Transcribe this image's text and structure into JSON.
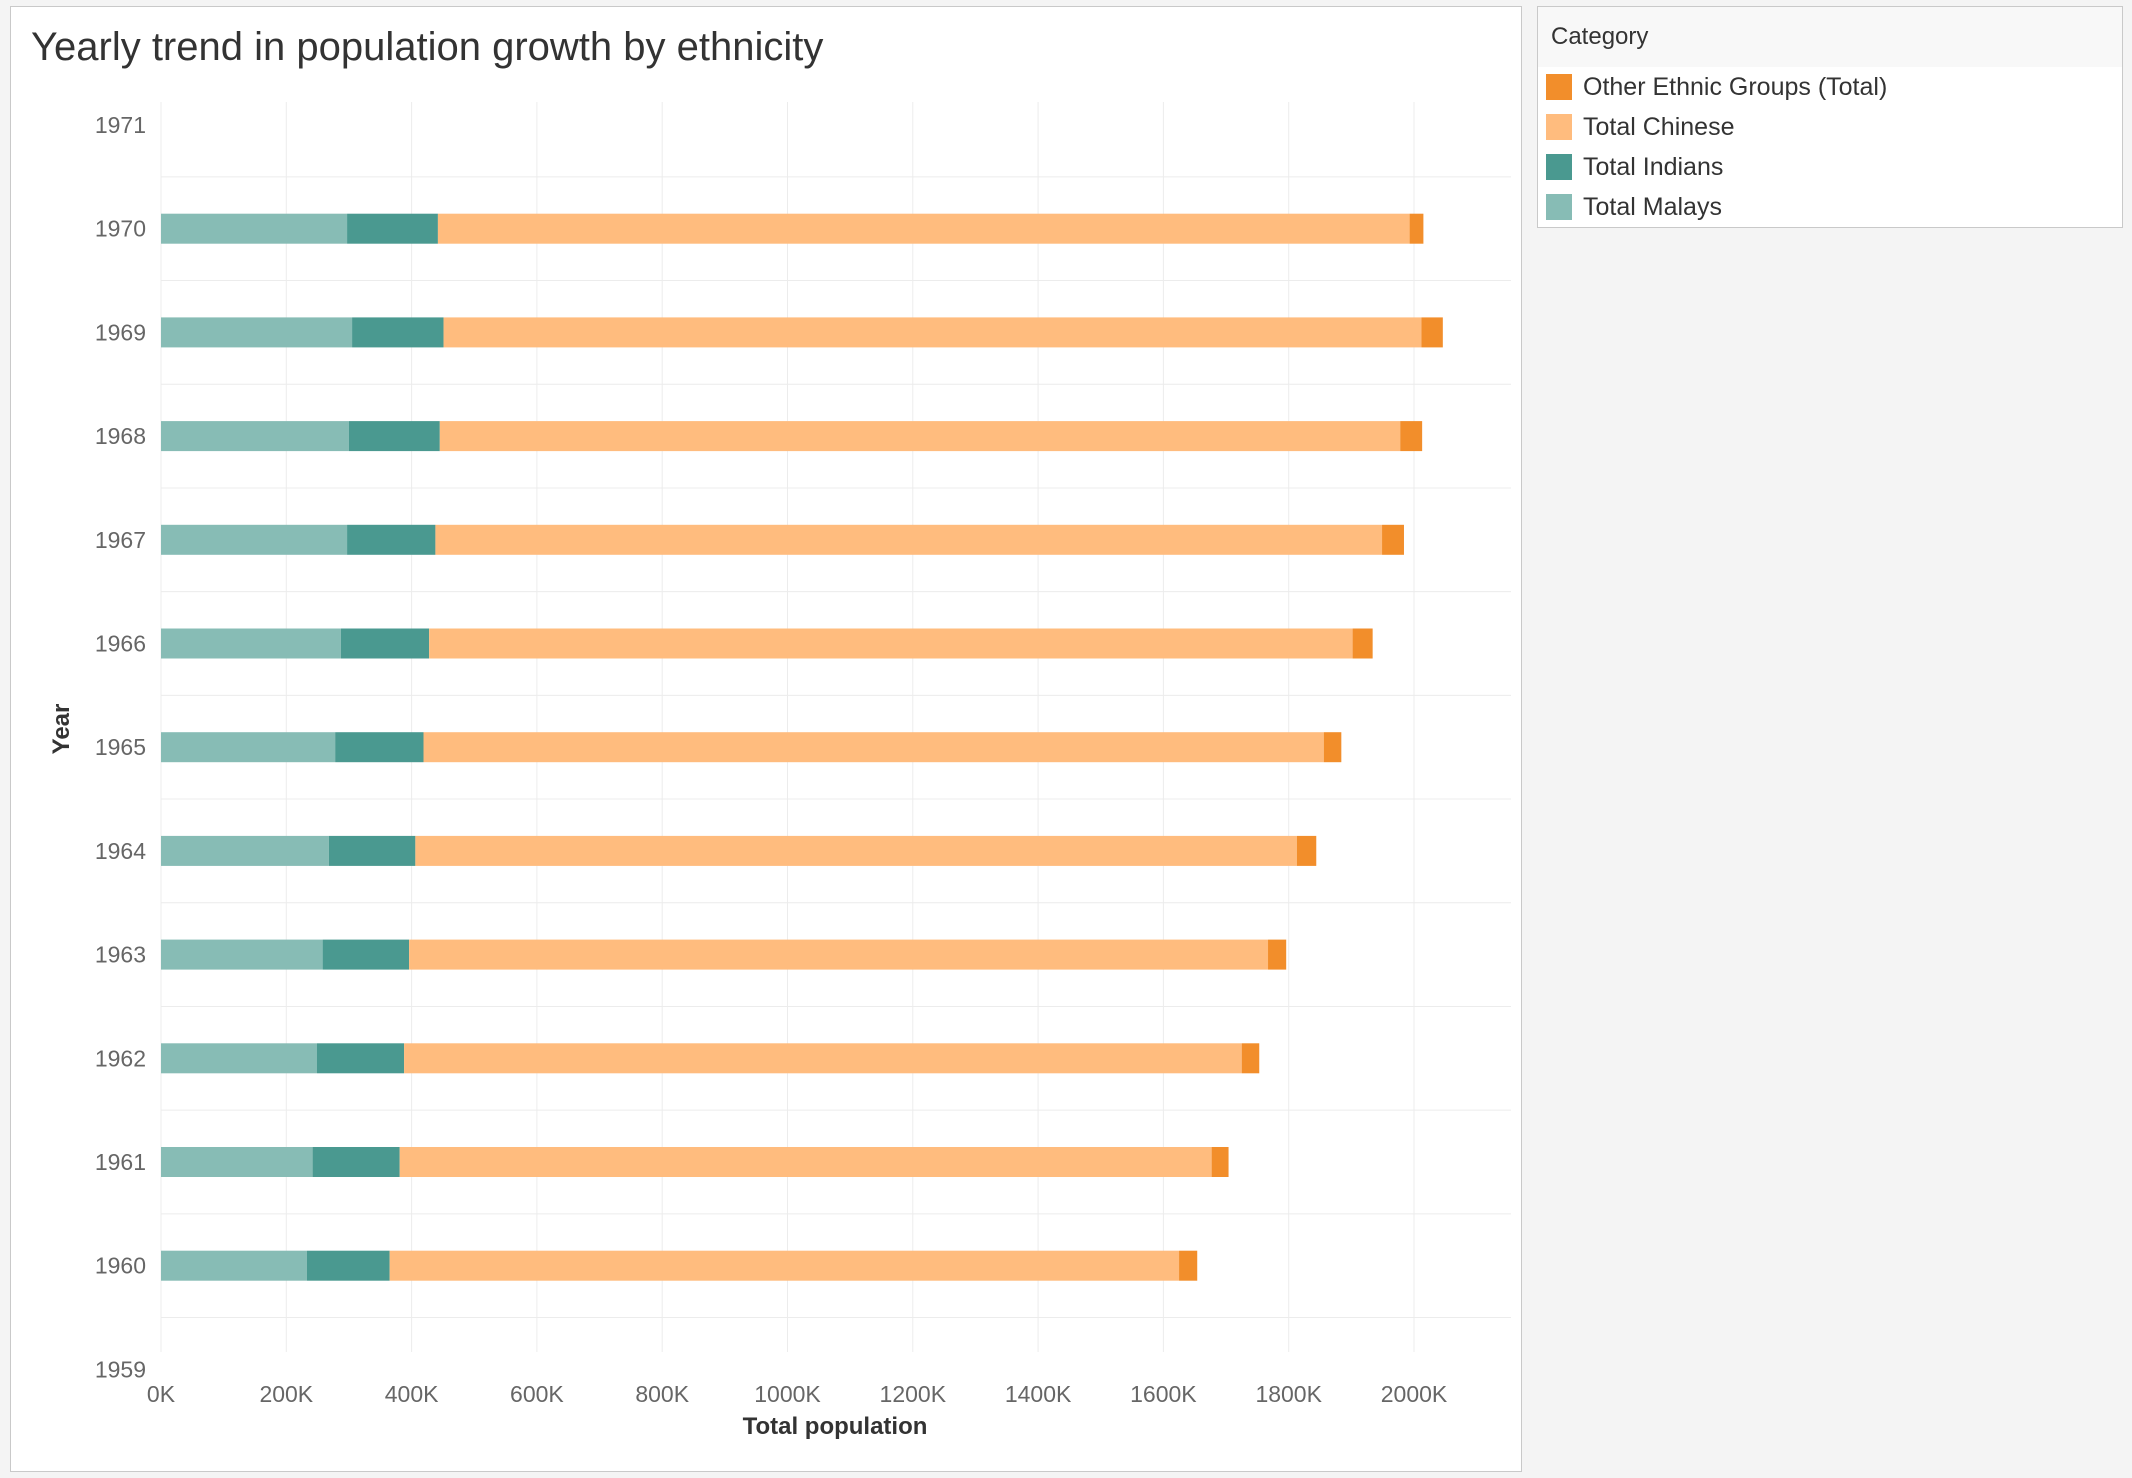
{
  "chart_data": {
    "type": "bar",
    "orientation": "horizontal",
    "stacked": true,
    "title": "Yearly trend in population growth by ethnicity",
    "xlabel": "Total population",
    "ylabel": "Year",
    "y_ticks": [
      "1971",
      "1970",
      "1969",
      "1968",
      "1967",
      "1966",
      "1965",
      "1964",
      "1963",
      "1962",
      "1961",
      "1960",
      "1959"
    ],
    "x_ticks": [
      "0K",
      "200K",
      "400K",
      "600K",
      "800K",
      "1000K",
      "1200K",
      "1400K",
      "1600K",
      "1800K",
      "2000K"
    ],
    "xlim": [
      0,
      2150000
    ],
    "grid": true,
    "legend_title": "Category",
    "legend_position": "right",
    "categories": [
      "1970",
      "1969",
      "1968",
      "1967",
      "1966",
      "1965",
      "1964",
      "1963",
      "1962",
      "1961",
      "1960"
    ],
    "series": [
      {
        "name": "Total Malays",
        "color": "#87bcb5",
        "values": [
          297000,
          305000,
          300000,
          297000,
          287000,
          278000,
          268000,
          258000,
          249000,
          242000,
          233000
        ]
      },
      {
        "name": "Total Indians",
        "color": "#4a9990",
        "values": [
          145000,
          146000,
          145000,
          141000,
          141000,
          141000,
          138000,
          138000,
          139000,
          139000,
          132000
        ]
      },
      {
        "name": "Total Chinese",
        "color": "#ffbc7e",
        "values": [
          1551000,
          1561000,
          1533000,
          1511000,
          1474000,
          1437000,
          1407000,
          1371000,
          1337000,
          1296000,
          1260000
        ]
      },
      {
        "name": "Other Ethnic Groups (Total)",
        "color": "#f28e2b",
        "values": [
          22000,
          34000,
          35000,
          35000,
          32000,
          28000,
          31000,
          29000,
          28000,
          27000,
          29000
        ]
      }
    ]
  }
}
